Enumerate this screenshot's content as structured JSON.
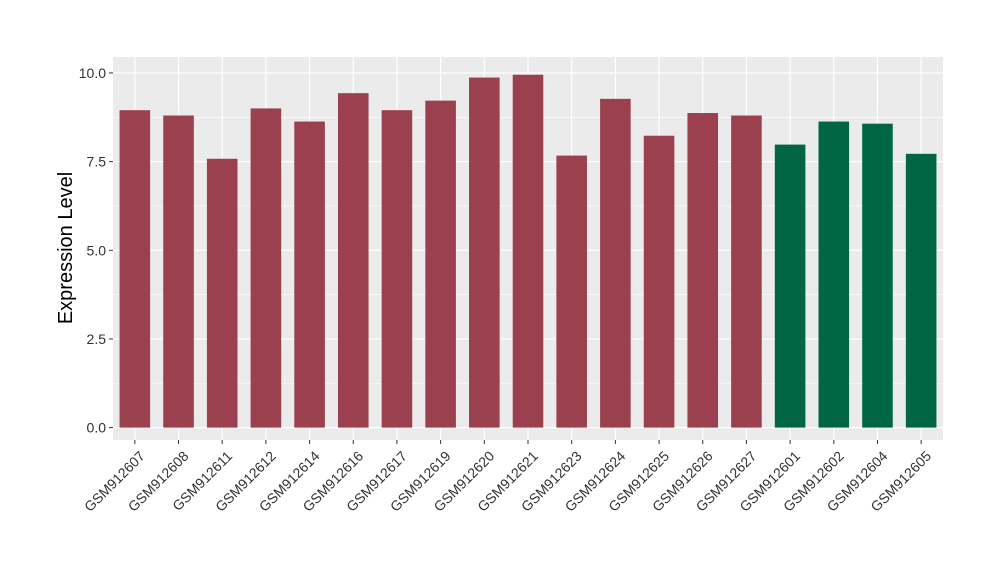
{
  "chart_data": {
    "type": "bar",
    "title": "",
    "xlabel": "",
    "ylabel": "Expression Level",
    "ylim": [
      -0.35,
      10.45
    ],
    "yticks": [
      0.0,
      2.5,
      5.0,
      7.5,
      10.0
    ],
    "ytick_labels": [
      "0.0",
      "2.5",
      "5.0",
      "7.5",
      "10.0"
    ],
    "grid": true,
    "legend": "none",
    "categories": [
      "GSM912607",
      "GSM912608",
      "GSM912611",
      "GSM912612",
      "GSM912614",
      "GSM912616",
      "GSM912617",
      "GSM912619",
      "GSM912620",
      "GSM912621",
      "GSM912623",
      "GSM912624",
      "GSM912625",
      "GSM912626",
      "GSM912627",
      "GSM912601",
      "GSM912602",
      "GSM912604",
      "GSM912605"
    ],
    "values": [
      8.95,
      8.8,
      7.58,
      9.0,
      8.63,
      9.43,
      8.95,
      9.22,
      9.87,
      9.95,
      7.67,
      9.27,
      8.23,
      8.87,
      8.8,
      7.98,
      8.63,
      8.57,
      7.72
    ],
    "groups": [
      0,
      0,
      0,
      0,
      0,
      0,
      0,
      0,
      0,
      0,
      0,
      0,
      0,
      0,
      0,
      1,
      1,
      1,
      1
    ],
    "group_colors": [
      "#9a404e",
      "#006644"
    ],
    "panel_background": "#ebebeb",
    "grid_color": "#ffffff"
  }
}
